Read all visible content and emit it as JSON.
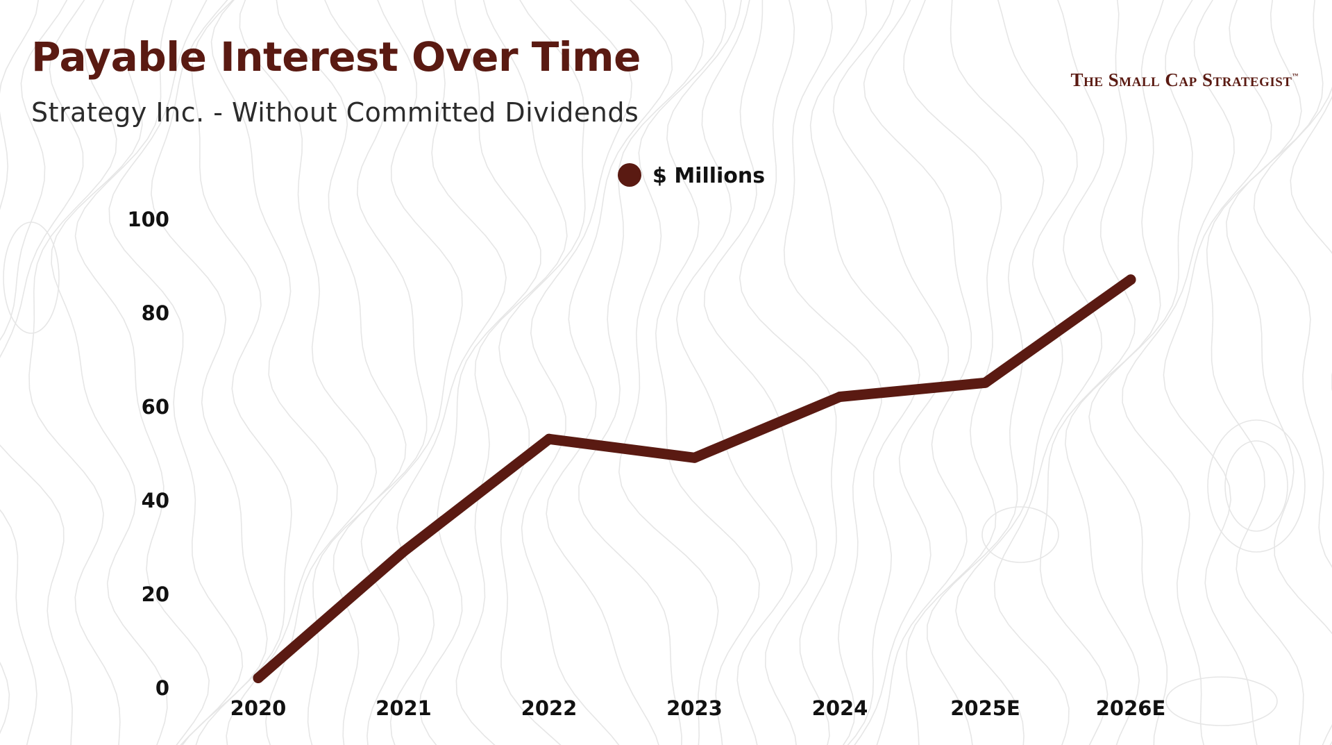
{
  "header": {
    "title": "Payable Interest Over Time",
    "subtitle": "Strategy Inc. - Without Committed Dividends",
    "brand": "The Small Cap Strategist",
    "brand_mark": "™"
  },
  "colors": {
    "line": "#5a1a12",
    "title": "#5a1a12",
    "background_lines": "#e6e6e6"
  },
  "chart_data": {
    "type": "line",
    "title": "Payable Interest Over Time",
    "xlabel": "",
    "ylabel": "",
    "x": [
      "2020",
      "2021",
      "2022",
      "2023",
      "2024",
      "2025E",
      "2026E"
    ],
    "series": [
      {
        "name": "$ Millions",
        "values": [
          2,
          29,
          53,
          49,
          62,
          65,
          87
        ]
      }
    ],
    "ylim": [
      0,
      100
    ],
    "yticks": [
      "0",
      "20",
      "40",
      "60",
      "80",
      "100"
    ],
    "legend": "top-center",
    "grid": false
  }
}
